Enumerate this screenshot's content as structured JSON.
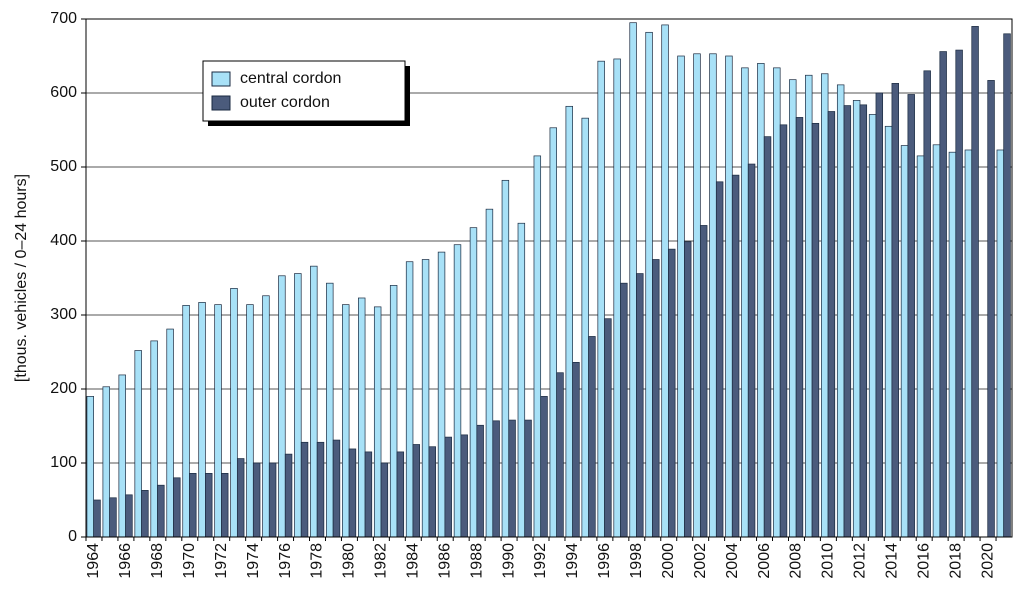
{
  "chart_data": {
    "type": "bar",
    "y_label": "[thous. vehicles / 0–24 hours]",
    "categories": [
      "1964",
      null,
      "1966",
      null,
      "1968",
      null,
      "1970",
      null,
      "1972",
      null,
      "1974",
      null,
      "1976",
      null,
      "1978",
      null,
      "1980",
      null,
      "1982",
      null,
      "1984",
      null,
      "1986",
      null,
      "1988",
      null,
      "1990",
      null,
      "1992",
      null,
      "1994",
      null,
      "1996",
      null,
      "1998",
      null,
      "2000",
      null,
      "2002",
      null,
      "2004",
      null,
      "2006",
      null,
      "2008",
      null,
      "2010",
      null,
      "2012",
      null,
      "2014",
      null,
      "2016",
      null,
      "2018",
      null,
      "2020",
      null
    ],
    "series": [
      {
        "name": "central cordon",
        "color": "#a8e1f7",
        "values": [
          190,
          203,
          219,
          252,
          265,
          281,
          313,
          317,
          314,
          336,
          314,
          326,
          353,
          356,
          366,
          343,
          314,
          323,
          311,
          340,
          372,
          375,
          385,
          395,
          418,
          443,
          482,
          424,
          515,
          553,
          582,
          566,
          643,
          646,
          695,
          682,
          692,
          650,
          653,
          653,
          650,
          634,
          640,
          634,
          618,
          624,
          626,
          611,
          590,
          571,
          555,
          529,
          515,
          530,
          520,
          523,
          null,
          523
        ]
      },
      {
        "name": "outer cordon",
        "color": "#4b5b7c",
        "values": [
          50,
          53,
          57,
          63,
          70,
          80,
          86,
          86,
          86,
          106,
          100,
          100,
          112,
          128,
          128,
          131,
          119,
          115,
          100,
          115,
          125,
          122,
          135,
          138,
          151,
          157,
          158,
          158,
          190,
          222,
          236,
          271,
          295,
          343,
          356,
          375,
          389,
          399,
          421,
          480,
          489,
          504,
          541,
          557,
          567,
          559,
          575,
          583,
          584,
          600,
          613,
          598,
          630,
          656,
          658,
          690,
          617,
          680
        ]
      }
    ],
    "ylim": [
      0,
      700
    ],
    "yticks": [
      0,
      100,
      200,
      300,
      400,
      500,
      600,
      700
    ],
    "grid": true
  }
}
